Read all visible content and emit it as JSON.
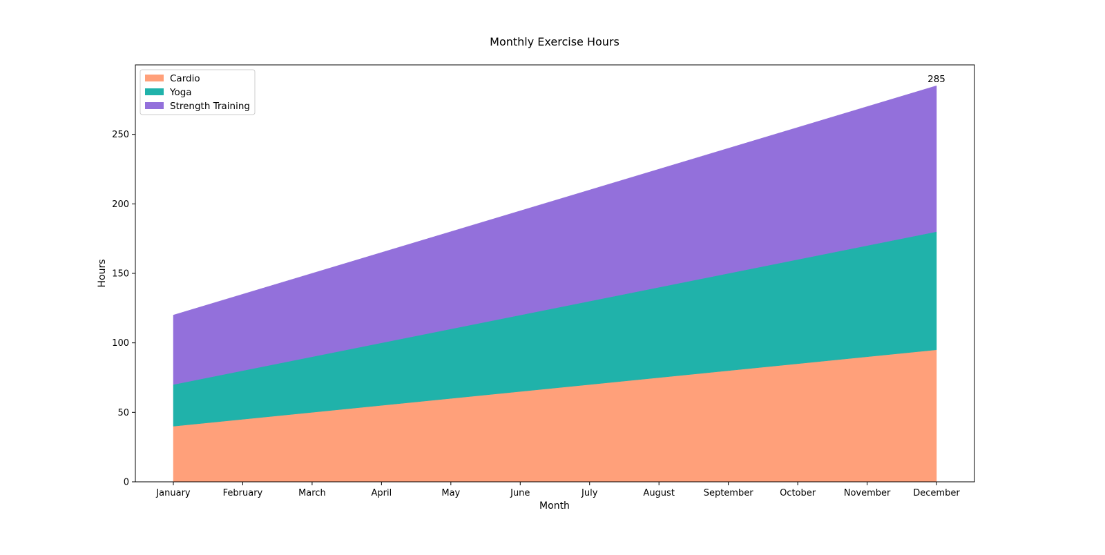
{
  "chart_data": {
    "type": "area",
    "stacked": true,
    "title": "Monthly Exercise Hours",
    "xlabel": "Month",
    "ylabel": "Hours",
    "categories": [
      "January",
      "February",
      "March",
      "April",
      "May",
      "June",
      "July",
      "August",
      "September",
      "October",
      "November",
      "December"
    ],
    "series": [
      {
        "name": "Cardio",
        "color": "#FFA07A",
        "values": [
          40,
          45,
          50,
          55,
          60,
          65,
          70,
          75,
          80,
          85,
          90,
          95
        ]
      },
      {
        "name": "Yoga",
        "color": "#20B2AA",
        "values": [
          30,
          35,
          40,
          45,
          50,
          55,
          60,
          65,
          70,
          75,
          80,
          85
        ]
      },
      {
        "name": "Strength Training",
        "color": "#9370DB",
        "values": [
          50,
          55,
          60,
          65,
          70,
          75,
          80,
          85,
          90,
          95,
          100,
          105
        ]
      }
    ],
    "ylim": [
      0,
      300
    ],
    "yticks": [
      0,
      50,
      100,
      150,
      200,
      250
    ],
    "legend": "upper-left",
    "grid": false,
    "annotations": [
      {
        "text": "285",
        "x": "December",
        "y": 285
      }
    ]
  }
}
